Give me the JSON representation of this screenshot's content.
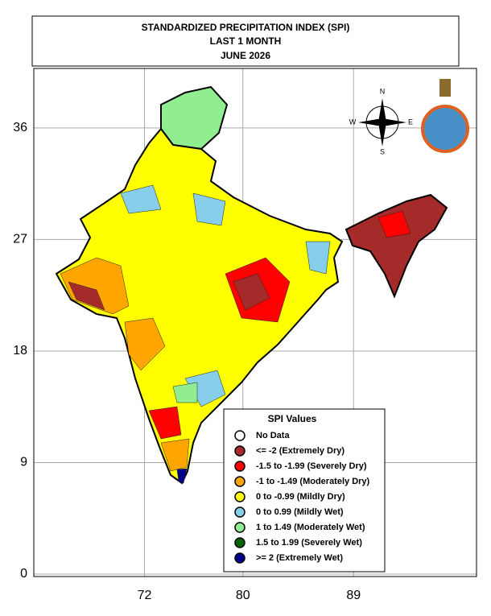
{
  "header": {
    "title_lines": [
      "STANDARDIZED PRECIPITATION INDEX (SPI)",
      "LAST 1 MONTH",
      "JUNE 2026"
    ]
  },
  "axes": {
    "xlim": [
      63,
      99
    ],
    "ylim": [
      0,
      40.8
    ],
    "xticks": [
      72,
      80,
      89
    ],
    "yticks": [
      36,
      27,
      18,
      9,
      0
    ],
    "grid": true
  },
  "compass": {
    "north": "N",
    "south": "S",
    "east": "E",
    "west": "W"
  },
  "legend": {
    "title": "SPI Values",
    "items": [
      {
        "label": "No Data",
        "color": "#ffffff"
      },
      {
        "label": "<= -2 (Extremely Dry)",
        "color": "#a52a2a"
      },
      {
        "label": "-1.5 to -1.99 (Severely Dry)",
        "color": "#ff0000"
      },
      {
        "label": "-1 to -1.49 (Moderately Dry)",
        "color": "#ffa500"
      },
      {
        "label": "0 to -0.99 (Mildly  Dry)",
        "color": "#ffff00"
      },
      {
        "label": "0 to 0.99 (Mildly  Wet)",
        "color": "#87ceeb"
      },
      {
        "label": "1 to 1.49 (Moderately Wet)",
        "color": "#90ee90"
      },
      {
        "label": "1.5 to 1.99 (Severely Wet)",
        "color": "#006400"
      },
      {
        "label": ">= 2 (Extremely Wet)",
        "color": "#00008b"
      }
    ]
  }
}
